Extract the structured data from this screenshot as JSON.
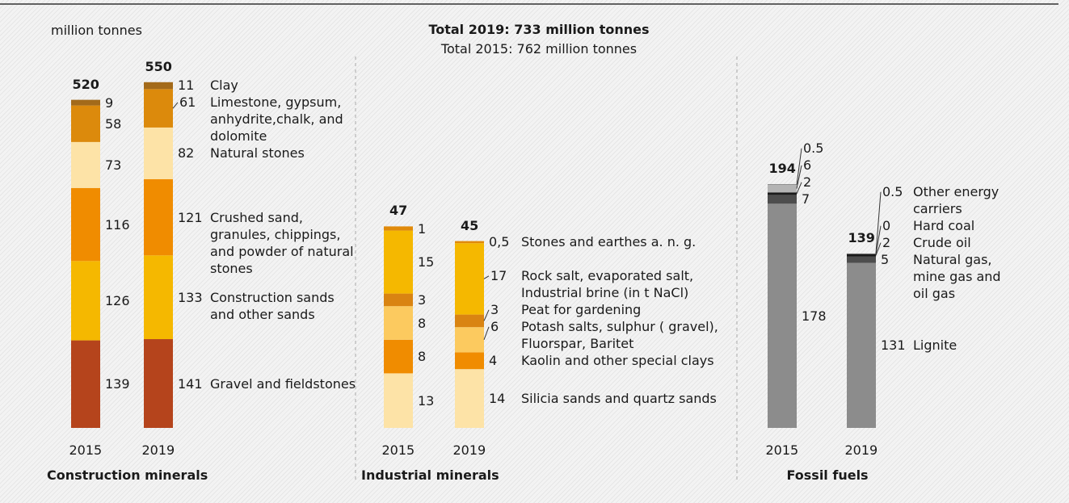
{
  "unit_label": "million tonnes",
  "totals_text": [
    "Total 2019: 733 million tonnes",
    "Total 2015: 762 million tonnes"
  ],
  "chart_data": [
    {
      "type": "bar",
      "stacked": true,
      "title": "Construction minerals",
      "categories": [
        "2015",
        "2019"
      ],
      "totals": [
        520,
        550
      ],
      "ylim": [
        0,
        600
      ],
      "series": [
        {
          "name": "Gravel and fieldstones",
          "color": "#b5441c",
          "values": [
            139,
            141
          ]
        },
        {
          "name": "Construction sands and other sands",
          "color": "#f5b800",
          "values": [
            126,
            133
          ]
        },
        {
          "name": "Crushed sand, granules, chippings, and powder of natural stones",
          "color": "#f08c00",
          "values": [
            116,
            121
          ]
        },
        {
          "name": "Natural stones",
          "color": "#fde3a7",
          "values": [
            73,
            82
          ]
        },
        {
          "name": "Limestone, gypsum, anhydrite,chalk, and dolomite",
          "color": "#dc8a0c",
          "values": [
            58,
            61
          ]
        },
        {
          "name": "Clay",
          "color": "#a36a1a",
          "values": [
            9,
            11
          ]
        }
      ]
    },
    {
      "type": "bar",
      "stacked": true,
      "title": "Industrial minerals",
      "categories": [
        "2015",
        "2019"
      ],
      "totals": [
        47,
        45
      ],
      "ylim": [
        0,
        90
      ],
      "series": [
        {
          "name": "Silicia sands and quartz sands",
          "color": "#fde3a7",
          "values": [
            13,
            14
          ]
        },
        {
          "name": "Kaolin and other special clays",
          "color": "#f08c00",
          "values": [
            8,
            4
          ]
        },
        {
          "name": "Potash salts, sulphur ( gravel), Fluorspar, Baritet",
          "color": "#fcca5f",
          "values": [
            8,
            6
          ]
        },
        {
          "name": "Peat for gardening",
          "color": "#d98412",
          "values": [
            3,
            3
          ]
        },
        {
          "name": "Rock salt, evaporated salt, Industrial brine (in t NaCl)",
          "color": "#f5b800",
          "values": [
            15,
            17
          ]
        },
        {
          "name": "Stones and earthes a. n. g.",
          "color": "#e08a0a",
          "values": [
            1,
            0.5
          ],
          "value_labels": [
            "1",
            "0,5"
          ]
        }
      ]
    },
    {
      "type": "bar",
      "stacked": true,
      "title": "Fossil fuels",
      "categories": [
        "2015",
        "2019"
      ],
      "totals": [
        194,
        139
      ],
      "ylim": [
        0,
        300
      ],
      "series": [
        {
          "name": "Lignite",
          "color": "#8c8c8c",
          "values": [
            178,
            131
          ]
        },
        {
          "name": "Natural gas, mine gas and oil gas",
          "color": "#4d4d4d",
          "values": [
            7,
            5
          ]
        },
        {
          "name": "Crude oil",
          "color": "#1a1a1a",
          "values": [
            2,
            2
          ]
        },
        {
          "name": "Hard coal",
          "color": "#b4b4b4",
          "values": [
            6,
            0
          ]
        },
        {
          "name": "Other energy carriers",
          "color": "#777777",
          "values": [
            0.5,
            0.5
          ]
        }
      ]
    }
  ]
}
